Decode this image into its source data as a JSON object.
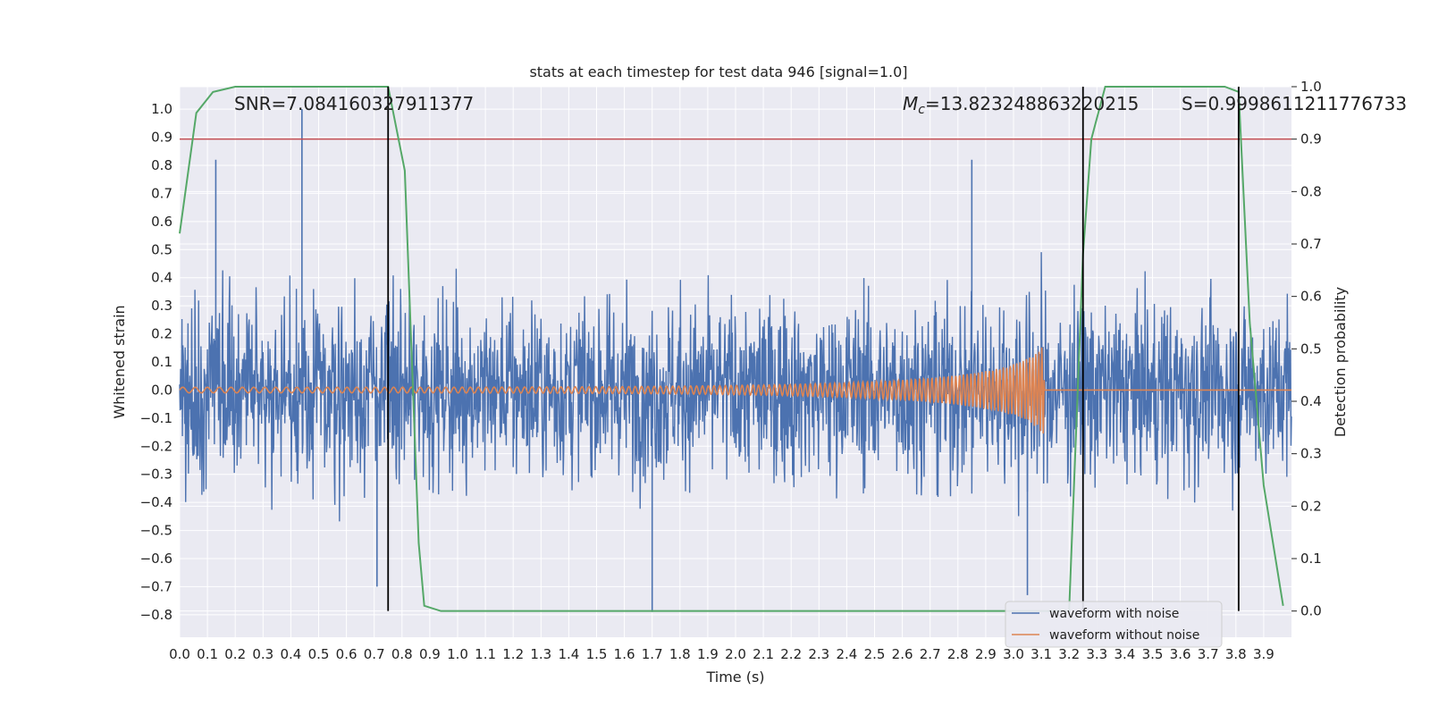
{
  "chart_data": {
    "type": "line",
    "title": "stats at each timestep for test data 946 [signal=1.0]",
    "xlabel": "Time (s)",
    "ylabel_left": "Whitened strain",
    "ylabel_right": "Detection probability",
    "xlim": [
      0.0,
      4.0
    ],
    "ylim_left": [
      -0.88,
      1.08
    ],
    "ylim_right": [
      -0.05,
      1.0
    ],
    "x_ticks": [
      "0.0",
      "0.1",
      "0.2",
      "0.3",
      "0.4",
      "0.5",
      "0.6",
      "0.7",
      "0.8",
      "0.9",
      "1.0",
      "1.1",
      "1.2",
      "1.3",
      "1.4",
      "1.5",
      "1.6",
      "1.7",
      "1.8",
      "1.9",
      "2.0",
      "2.1",
      "2.2",
      "2.3",
      "2.4",
      "2.5",
      "2.6",
      "2.7",
      "2.8",
      "2.9",
      "3.0",
      "3.1",
      "3.2",
      "3.3",
      "3.4",
      "3.5",
      "3.6",
      "3.7",
      "3.8",
      "3.9"
    ],
    "y_ticks_left": [
      "1.0",
      "0.9",
      "0.8",
      "0.7",
      "0.6",
      "0.5",
      "0.4",
      "0.3",
      "0.2",
      "0.1",
      "0.0",
      "−0.1",
      "−0.2",
      "−0.3",
      "−0.4",
      "−0.5",
      "−0.6",
      "−0.7",
      "−0.8"
    ],
    "y_ticks_right": [
      "1.0",
      "0.9",
      "0.8",
      "0.7",
      "0.6",
      "0.5",
      "0.4",
      "0.3",
      "0.2",
      "0.1",
      "0.0"
    ],
    "grid": true,
    "legend_position": "bottom-right",
    "annotations": {
      "snr": "SNR=7.084160327911377",
      "mc_symbol": "M",
      "mc_sub": "c",
      "mc_value": "=13.823248863220215",
      "s": "S=0.9998611211776733"
    },
    "series": [
      {
        "name": "waveform with noise",
        "color": "#4c72b0",
        "axis": "left",
        "kind": "noise",
        "amplitude_rms": 0.22,
        "x_range": [
          0.0,
          4.0
        ]
      },
      {
        "name": "waveform without noise",
        "color": "#dd8452",
        "axis": "left",
        "kind": "chirp",
        "t_merge": 3.11,
        "f_start": 22,
        "f_end": 110,
        "amp_start": 0.01,
        "amp_end": 0.27
      }
    ],
    "noise_spikes": [
      {
        "x": 0.13,
        "y": 0.82
      },
      {
        "x": 0.44,
        "y": 1.0
      },
      {
        "x": 0.71,
        "y": -0.7
      },
      {
        "x": 1.7,
        "y": -0.79
      },
      {
        "x": 2.85,
        "y": 0.82
      },
      {
        "x": 3.05,
        "y": -0.73
      }
    ],
    "detection_probability": {
      "name": "detection probability",
      "color": "#55a868",
      "axis": "right",
      "x": [
        0.0,
        0.06,
        0.12,
        0.2,
        0.3,
        0.5,
        0.6,
        0.7,
        0.75,
        0.81,
        0.86,
        0.88,
        0.94,
        1.0,
        2.0,
        3.0,
        3.2,
        3.25,
        3.28,
        3.33,
        3.5,
        3.7,
        3.76,
        3.81,
        3.85,
        3.9,
        3.97
      ],
      "y": [
        0.72,
        0.95,
        0.99,
        1.0,
        1.0,
        1.0,
        1.0,
        1.0,
        1.0,
        0.84,
        0.13,
        0.01,
        0.0,
        0.0,
        0.0,
        0.0,
        0.0,
        0.68,
        0.9,
        1.0,
        1.0,
        1.0,
        1.0,
        0.99,
        0.55,
        0.24,
        0.01
      ]
    },
    "threshold": {
      "value": 0.9,
      "axis": "right",
      "color": "#c44e52"
    },
    "vertical_markers": {
      "x": [
        0.75,
        3.25,
        3.81
      ],
      "color": "#000000",
      "y_range_right": [
        0.0,
        1.0
      ]
    }
  }
}
